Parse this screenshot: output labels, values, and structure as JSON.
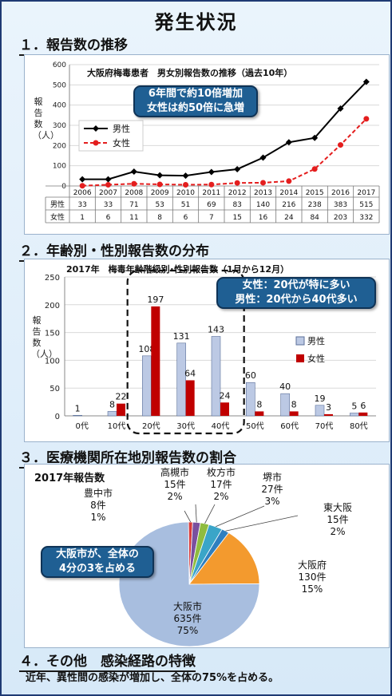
{
  "page_title": "発生状況",
  "sections": {
    "s1": "１．報告数の推移",
    "s2": "２．年齢別・性別報告数の分布",
    "s3": "３．医療機関所在地別報告数の割合",
    "s4": "４．その他　感染経路の特徴"
  },
  "footer_text": "近年、異性間の感染が増加し、全体の75%を占める。",
  "colors": {
    "male_line": "#000000",
    "female_line": "#e41e1e",
    "male_bar": "#bcc9e4",
    "female_bar": "#c00000",
    "callout_bg": "#1f5f93"
  },
  "chart_data": [
    {
      "type": "line",
      "title": "大阪府梅毒患者　男女別報告数の推移（過去10年）",
      "ylabel": "報告数（人）",
      "ylim": [
        0,
        600
      ],
      "yticks": [
        "0",
        "100",
        "200",
        "300",
        "400",
        "500",
        "600"
      ],
      "categories": [
        "2006",
        "2007",
        "2008",
        "2009",
        "2010",
        "2011",
        "2012",
        "2013",
        "2014",
        "2015",
        "2016",
        "2017"
      ],
      "series": [
        {
          "name": "男性",
          "values": [
            33,
            33,
            71,
            53,
            51,
            69,
            83,
            140,
            216,
            238,
            383,
            515
          ]
        },
        {
          "name": "女性",
          "values": [
            1,
            6,
            11,
            8,
            6,
            7,
            15,
            16,
            24,
            84,
            203,
            332
          ]
        }
      ],
      "table_rows": [
        {
          "label": "男性",
          "values": [
            "33",
            "33",
            "71",
            "53",
            "51",
            "69",
            "83",
            "140",
            "216",
            "238",
            "383",
            "515"
          ]
        },
        {
          "label": "女性",
          "values": [
            "1",
            "6",
            "11",
            "8",
            "6",
            "7",
            "15",
            "16",
            "24",
            "84",
            "203",
            "332"
          ]
        }
      ],
      "legend_position": "left",
      "callout": [
        "6年間で約10倍増加",
        "女性は約50倍に急増"
      ]
    },
    {
      "type": "bar",
      "title": "2017年　梅毒年齢階級別･性別報告数（1月から12月）",
      "ylabel": "報告数（人）",
      "ylim": [
        0,
        250
      ],
      "yticks": [
        "0",
        "50",
        "100",
        "150",
        "200",
        "250"
      ],
      "categories": [
        "0代",
        "10代",
        "20代",
        "30代",
        "40代",
        "50代",
        "60代",
        "70代",
        "80代"
      ],
      "series": [
        {
          "name": "男性",
          "values": [
            1,
            8,
            108,
            131,
            143,
            60,
            40,
            19,
            5
          ],
          "labels": [
            "1",
            "8",
            "108",
            "131",
            "143",
            "60",
            "40",
            "19",
            "5"
          ]
        },
        {
          "name": "女性",
          "values": [
            0,
            22,
            197,
            64,
            24,
            8,
            8,
            3,
            6
          ],
          "labels": [
            "",
            "22",
            "197",
            "64",
            "24",
            "8",
            "8",
            "3",
            "6"
          ]
        }
      ],
      "legend_position": "right",
      "callout": [
        "女性：20代が特に多い",
        "男性：20代から40代多い"
      ]
    },
    {
      "type": "pie",
      "title": "2017年報告数",
      "slices": [
        {
          "name": "大阪市",
          "value": 635,
          "count": "635件",
          "percent": "75%"
        },
        {
          "name": "大阪府",
          "value": 130,
          "count": "130件",
          "percent": "15%"
        },
        {
          "name": "東大阪",
          "value": 15,
          "count": "15件",
          "percent": "2%"
        },
        {
          "name": "堺市",
          "value": 27,
          "count": "27件",
          "percent": "3%"
        },
        {
          "name": "枚方市",
          "value": 17,
          "count": "17件",
          "percent": "2%"
        },
        {
          "name": "高槻市",
          "value": 15,
          "count": "15件",
          "percent": "2%"
        },
        {
          "name": "豊中市",
          "value": 8,
          "count": "8件",
          "percent": "1%"
        }
      ],
      "slice_colors": [
        "#a8bedf",
        "#f39a2e",
        "#2f7fbf",
        "#3aa5c8",
        "#8fbc3f",
        "#7a4f9e",
        "#d83b3b"
      ],
      "callout": [
        "大阪市が、全体の",
        "4分の3を占める"
      ]
    }
  ]
}
